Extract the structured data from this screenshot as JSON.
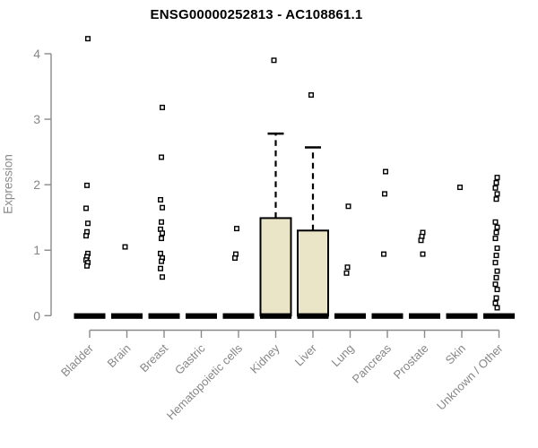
{
  "page": {
    "background": "#ffffff"
  },
  "chart_data": {
    "type": "boxplot",
    "title": "ENSG00000252813 - AC108861.1",
    "ylabel": "Expression",
    "xlabel": "",
    "ylim": [
      0,
      4.35
    ],
    "yticks": [
      0,
      1,
      2,
      3,
      4
    ],
    "grid": false,
    "legend_position": "none",
    "box_fill_color": "#ebe5c7",
    "box_border_color": "#000000",
    "median_color": "#000000",
    "point_color": "#000000",
    "axis_color": "#8a8a8a",
    "tick_label_color": "#868686",
    "title_color": "#000000",
    "categories": [
      "Bladder",
      "Brain",
      "Breast",
      "Gastric",
      "Hematopoietic cells",
      "Kidney",
      "Liver",
      "Lung",
      "Pancreas",
      "Prostate",
      "Skin",
      "Unknown / Other"
    ],
    "series": [
      {
        "category": "Bladder",
        "median": 0,
        "q1": 0,
        "q3": 0,
        "whisker_low": 0,
        "whisker_high": 0,
        "outliers": [
          4.23,
          1.99,
          1.64,
          1.41,
          1.28,
          1.22,
          0.95,
          0.9,
          0.85,
          0.81,
          0.76
        ]
      },
      {
        "category": "Brain",
        "median": 0,
        "q1": 0,
        "q3": 0,
        "whisker_low": 0,
        "whisker_high": 0,
        "outliers": [
          1.05
        ]
      },
      {
        "category": "Breast",
        "median": 0,
        "q1": 0,
        "q3": 0,
        "whisker_low": 0,
        "whisker_high": 0,
        "outliers": [
          3.18,
          2.42,
          1.77,
          1.65,
          1.43,
          1.32,
          1.26,
          1.18,
          0.95,
          0.88,
          0.83,
          0.72,
          0.59
        ]
      },
      {
        "category": "Gastric",
        "median": 0,
        "q1": 0,
        "q3": 0,
        "whisker_low": 0,
        "whisker_high": 0,
        "outliers": []
      },
      {
        "category": "Hematopoietic cells",
        "median": 0,
        "q1": 0,
        "q3": 0,
        "whisker_low": 0,
        "whisker_high": 0,
        "outliers": [
          1.33,
          0.94,
          0.88
        ]
      },
      {
        "category": "Kidney",
        "median": 0,
        "q1": 0,
        "q3": 1.49,
        "whisker_low": 0,
        "whisker_high": 2.78,
        "outliers": [
          3.9
        ]
      },
      {
        "category": "Liver",
        "median": 0,
        "q1": 0,
        "q3": 1.3,
        "whisker_low": 0,
        "whisker_high": 2.57,
        "outliers": [
          3.37
        ]
      },
      {
        "category": "Lung",
        "median": 0,
        "q1": 0,
        "q3": 0,
        "whisker_low": 0,
        "whisker_high": 0,
        "outliers": [
          1.67,
          0.74,
          0.65
        ]
      },
      {
        "category": "Pancreas",
        "median": 0,
        "q1": 0,
        "q3": 0,
        "whisker_low": 0,
        "whisker_high": 0,
        "outliers": [
          2.2,
          1.86,
          0.94
        ]
      },
      {
        "category": "Prostate",
        "median": 0,
        "q1": 0,
        "q3": 0,
        "whisker_low": 0,
        "whisker_high": 0,
        "outliers": [
          1.27,
          1.21,
          1.15,
          0.94
        ]
      },
      {
        "category": "Skin",
        "median": 0,
        "q1": 0,
        "q3": 0,
        "whisker_low": 0,
        "whisker_high": 0,
        "outliers": [
          1.96
        ]
      },
      {
        "category": "Unknown / Other",
        "median": 0,
        "q1": 0,
        "q3": 0,
        "whisker_low": 0,
        "whisker_high": 0,
        "outliers": [
          2.11,
          2.03,
          1.95,
          1.86,
          1.78,
          1.43,
          1.35,
          1.27,
          1.18,
          1.03,
          0.92,
          0.81,
          0.68,
          0.58,
          0.48,
          0.4,
          0.27,
          0.19,
          0.12
        ]
      }
    ]
  }
}
